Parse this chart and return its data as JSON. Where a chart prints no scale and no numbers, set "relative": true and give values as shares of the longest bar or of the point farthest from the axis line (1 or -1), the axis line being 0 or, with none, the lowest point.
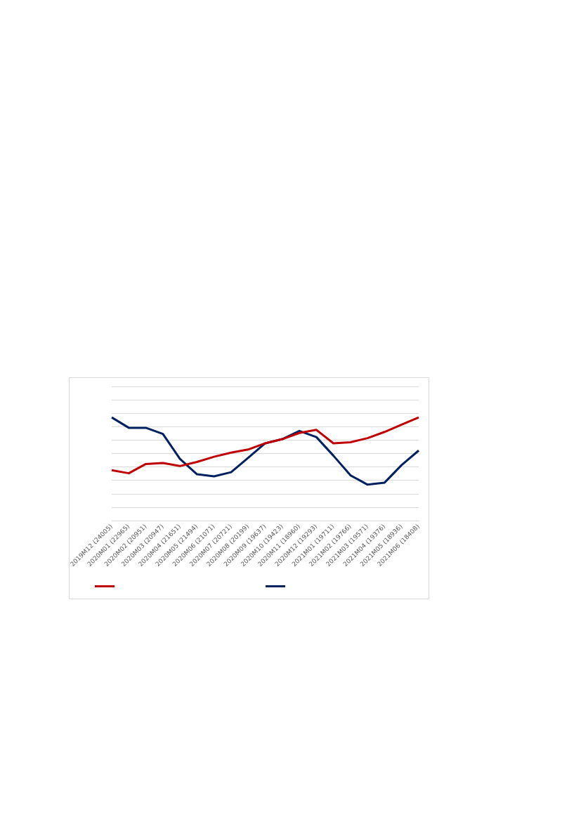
{
  "chart_data": {
    "type": "line",
    "relative": true,
    "grid": "y",
    "marker": "none",
    "line_style": "solid",
    "categories": [
      "2019M12 (24005)",
      "2020M01 (22965)",
      "2020M02 (20951)",
      "2020M03 (20947)",
      "2020M04 (21651)",
      "2020M05 (21494)",
      "2020M06 (21071)",
      "2020M07 (20721)",
      "2020M08 (20199)",
      "2020M09 (19637)",
      "2020M10 (19423)",
      "2020M11 (18960)",
      "2020M12 (19293)",
      "2021M01 (19711)",
      "2021M02 (19766)",
      "2021M03 (19571)",
      "2021M04 (19376)",
      "2021M05 (18936)",
      "2021M06 (18408)"
    ],
    "series": [
      {
        "color": "#c00000",
        "values": [
          0.49,
          0.46,
          0.55,
          0.56,
          0.53,
          0.57,
          0.62,
          0.66,
          0.69,
          0.75,
          0.79,
          0.85,
          0.88,
          0.75,
          0.76,
          0.8,
          0.86,
          0.93,
          1
        ]
      },
      {
        "color": "#002060",
        "values": [
          1,
          0.9,
          0.9,
          0.84,
          0.6,
          0.45,
          0.43,
          0.47,
          0.61,
          0.75,
          0.79,
          0.87,
          0.81,
          0.63,
          0.44,
          0.35,
          0.37,
          0.54,
          0.68
        ]
      }
    ]
  }
}
